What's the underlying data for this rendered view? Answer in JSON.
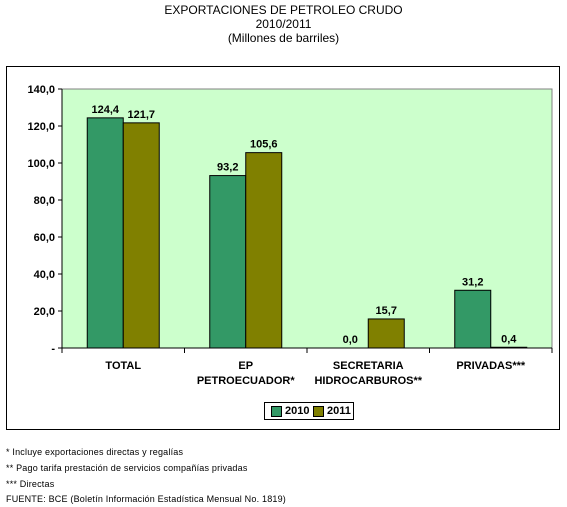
{
  "header": {
    "line1": "EXPORTACIONES DE PETROLEO CRUDO",
    "line2": "2010/2011",
    "line3": "(Millones de barriles)"
  },
  "chart_data": {
    "type": "bar",
    "title": "EXPORTACIONES DE PETROLEO CRUDO",
    "subtitle": "2010/2011 (Millones de barriles)",
    "categories": [
      [
        "TOTAL"
      ],
      [
        "EP",
        "PETROECUADOR*"
      ],
      [
        "SECRETARIA",
        "HIDROCARBUROS**"
      ],
      [
        "PRIVADAS***"
      ]
    ],
    "series": [
      {
        "name": "2010",
        "values": [
          124.4,
          93.2,
          0.0,
          31.2
        ],
        "labels": [
          "124,4",
          "93,2",
          "0,0",
          "31,2"
        ],
        "color": "#339966"
      },
      {
        "name": "2011",
        "values": [
          121.7,
          105.6,
          15.7,
          0.4
        ],
        "labels": [
          "121,7",
          "105,6",
          "15,7",
          "0,4"
        ],
        "color": "#808000"
      }
    ],
    "yticks": [
      "-",
      "20,0",
      "40,0",
      "60,0",
      "80,0",
      "100,0",
      "120,0",
      "140,0"
    ],
    "ylim": [
      0,
      140
    ],
    "grid": false,
    "plot_background": "#ccffcc",
    "legend_position": "bottom"
  },
  "notes": [
    "* Incluye exportaciones directas y regalías",
    "** Pago tarifa prestación de servicios compañías privadas",
    "*** Directas",
    "FUENTE: BCE (Boletín Información Estadística Mensual No. 1819)"
  ]
}
